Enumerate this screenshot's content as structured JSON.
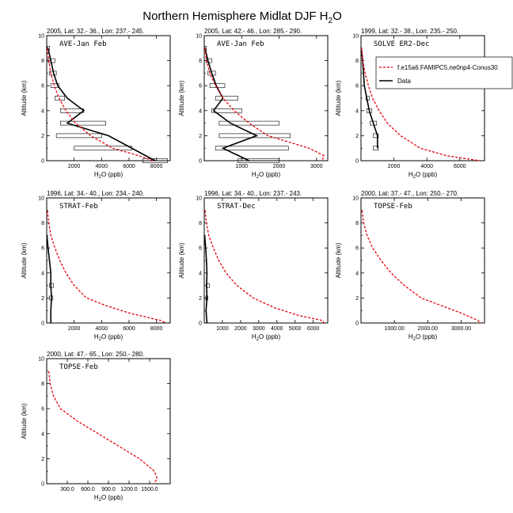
{
  "figure_title": "Northern Hemisphere Midlat DJF H",
  "figure_title_sub": "2",
  "figure_title_tail": "O",
  "legend": {
    "model": "f.e15a6.FAMIPC5.ne0np4-Conus30",
    "obs": "Data"
  },
  "colors": {
    "model": "#e8000b",
    "obs": "#000000",
    "box": "#000000"
  },
  "chart_data": [
    {
      "type": "line",
      "title": "2005, Lat: 32.- 36., Lon: 237.- 245.",
      "campaign": "AVE-Jan Feb",
      "xlabel": "H2O (ppb)",
      "ylabel": "Altitude (km)",
      "xlim": [
        0,
        9000
      ],
      "ylim": [
        0,
        10
      ],
      "xticks": [
        2000,
        4000,
        6000,
        8000
      ],
      "xtick_labels": [
        "2000",
        "4000",
        "6000",
        "8000"
      ],
      "yticks": [
        0,
        2,
        4,
        6,
        8,
        10
      ],
      "model": {
        "x": [
          50,
          80,
          150,
          300,
          550,
          900,
          1400,
          2100,
          3200,
          4800,
          6400,
          7800
        ],
        "y": [
          9,
          8.5,
          8,
          7,
          6,
          5,
          4,
          3,
          2,
          1,
          0.5,
          0
        ]
      },
      "obs": {
        "x": [
          100,
          300,
          500,
          800,
          1500,
          2700,
          1500,
          4500,
          7900
        ],
        "y": [
          9,
          8,
          7,
          6,
          5,
          4,
          3,
          2,
          0
        ]
      },
      "boxes": [
        {
          "y": 9,
          "lo": 50,
          "hi": 200
        },
        {
          "y": 8,
          "lo": 100,
          "hi": 600
        },
        {
          "y": 7,
          "lo": 200,
          "hi": 700
        },
        {
          "y": 6,
          "lo": 300,
          "hi": 900
        },
        {
          "y": 5,
          "lo": 600,
          "hi": 1300
        },
        {
          "y": 4,
          "lo": 1000,
          "hi": 2700
        },
        {
          "y": 3,
          "lo": 1000,
          "hi": 4300
        },
        {
          "y": 2,
          "lo": 700,
          "hi": 4000
        },
        {
          "y": 1,
          "lo": 2000,
          "hi": 6200
        },
        {
          "y": 0,
          "lo": 7000,
          "hi": 8800
        }
      ]
    },
    {
      "type": "line",
      "title": "2005, Lat: 42.- 46., Lon: 285.- 290.",
      "campaign": "AVE-Jan Feb",
      "xlabel": "H2O (ppb)",
      "ylabel": "Altitude (km)",
      "xlim": [
        0,
        3300
      ],
      "ylim": [
        0,
        10
      ],
      "xticks": [
        1000,
        2000,
        3000
      ],
      "xtick_labels": [
        "1000",
        "2000",
        "3000"
      ],
      "yticks": [
        0,
        2,
        4,
        6,
        8,
        10
      ],
      "model": {
        "x": [
          20,
          60,
          150,
          300,
          500,
          800,
          1200,
          1700,
          2250,
          2800,
          3200,
          3150
        ],
        "y": [
          9,
          8,
          7,
          6,
          5,
          4,
          3,
          2,
          1.5,
          1,
          0.4,
          0
        ]
      },
      "obs": {
        "x": [
          20,
          100,
          200,
          320,
          500,
          250,
          700,
          1400,
          500,
          1200
        ],
        "y": [
          9,
          8,
          7,
          6,
          5,
          4,
          3,
          2,
          1,
          0
        ]
      },
      "boxes": [
        {
          "y": 9,
          "lo": 10,
          "hi": 60
        },
        {
          "y": 8,
          "lo": 50,
          "hi": 200
        },
        {
          "y": 7,
          "lo": 100,
          "hi": 300
        },
        {
          "y": 6,
          "lo": 150,
          "hi": 550
        },
        {
          "y": 5,
          "lo": 300,
          "hi": 900
        },
        {
          "y": 4,
          "lo": 200,
          "hi": 1000
        },
        {
          "y": 3,
          "lo": 400,
          "hi": 2000
        },
        {
          "y": 2,
          "lo": 400,
          "hi": 2300
        },
        {
          "y": 1,
          "lo": 300,
          "hi": 2250
        },
        {
          "y": 0,
          "lo": 900,
          "hi": 2000
        }
      ]
    },
    {
      "type": "line",
      "title": "1999, Lat: 32.- 38., Lon: 235.- 250.",
      "campaign": "SOLVE ER2-Dec",
      "xlabel": "H2O (ppb)",
      "ylabel": "Altitude (km)",
      "xlim": [
        0,
        7500
      ],
      "ylim": [
        0,
        10
      ],
      "xticks": [
        2000,
        4000,
        6000
      ],
      "xtick_labels": [
        "2000",
        "4000",
        "6000"
      ],
      "yticks": [
        0,
        2,
        4,
        6,
        8,
        10
      ],
      "model": {
        "x": [
          30,
          100,
          250,
          450,
          700,
          1100,
          1600,
          2400,
          3600,
          5200,
          7200
        ],
        "y": [
          9,
          8,
          7,
          6,
          5,
          4,
          3,
          2,
          1,
          0.4,
          0
        ]
      },
      "obs": {
        "x": [
          20,
          100,
          200,
          350,
          500,
          750,
          1000,
          1000
        ],
        "y": [
          9,
          8,
          6,
          5,
          4,
          3,
          2,
          1
        ]
      },
      "boxes": [
        {
          "y": 5,
          "lo": 300,
          "hi": 500
        },
        {
          "y": 4,
          "lo": 350,
          "hi": 650
        },
        {
          "y": 3,
          "lo": 550,
          "hi": 950
        },
        {
          "y": 2,
          "lo": 750,
          "hi": 1050
        },
        {
          "y": 1,
          "lo": 750,
          "hi": 1050
        }
      ],
      "show_legend": true
    },
    {
      "type": "line",
      "title": "1996, Lat: 34.- 40., Lon: 234.- 240.",
      "campaign": "STRAT-Feb",
      "xlabel": "H2O (ppb)",
      "ylabel": "Altitude (km)",
      "xlim": [
        0,
        9000
      ],
      "ylim": [
        0,
        10
      ],
      "xticks": [
        2000,
        4000,
        6000,
        8000
      ],
      "xtick_labels": [
        "2000",
        "4000",
        "6000",
        "8000"
      ],
      "yticks": [
        0,
        2,
        4,
        6,
        8,
        10
      ],
      "model": {
        "x": [
          50,
          150,
          300,
          600,
          950,
          1400,
          2000,
          2900,
          4300,
          6000,
          8300,
          8700
        ],
        "y": [
          9,
          8,
          7,
          6,
          5,
          4,
          3,
          2,
          1.4,
          0.8,
          0.2,
          0
        ]
      },
      "obs": {
        "x": [
          20,
          100,
          200,
          300,
          300,
          350,
          300,
          300
        ],
        "y": [
          7,
          6,
          5,
          4,
          3,
          2,
          1,
          0
        ]
      },
      "boxes": [
        {
          "y": 3,
          "lo": 200,
          "hi": 500
        },
        {
          "y": 2,
          "lo": 200,
          "hi": 450
        }
      ]
    },
    {
      "type": "line",
      "title": "1996, Lat: 34.- 40., Lon: 237.- 243.",
      "campaign": "STRAT-Dec",
      "xlabel": "H2O (ppb)",
      "ylabel": "Altitude (km)",
      "xlim": [
        0,
        6800
      ],
      "ylim": [
        0,
        10
      ],
      "xticks": [
        1000,
        2000,
        3000,
        4000,
        5000,
        6000
      ],
      "xtick_labels": [
        "1000",
        "2000",
        "3000",
        "4000",
        "5000",
        "6000"
      ],
      "yticks": [
        0,
        2,
        4,
        6,
        8,
        10
      ],
      "model": {
        "x": [
          40,
          120,
          250,
          500,
          800,
          1200,
          1800,
          2700,
          3900,
          5200,
          6500,
          6600
        ],
        "y": [
          9,
          8,
          7,
          6,
          5,
          4,
          3,
          2,
          1.2,
          0.6,
          0.2,
          0
        ]
      },
      "obs": {
        "x": [
          20,
          80,
          120,
          150,
          130,
          150,
          100,
          150
        ],
        "y": [
          7,
          6,
          5,
          4,
          3,
          2,
          1,
          0
        ]
      },
      "boxes": [
        {
          "y": 3,
          "lo": 100,
          "hi": 280
        },
        {
          "y": 2,
          "lo": 80,
          "hi": 200
        }
      ]
    },
    {
      "type": "line",
      "title": "2000, Lat: 37.- 47., Lon: 250.- 270.",
      "campaign": "TOPSE-Feb",
      "xlabel": "H2O (ppb)",
      "ylabel": "Altitude (km)",
      "xlim": [
        0,
        3700
      ],
      "ylim": [
        0,
        10
      ],
      "xticks": [
        1000,
        2000,
        3000
      ],
      "xtick_labels": [
        "1000.00",
        "2000.00",
        "3000.00"
      ],
      "yticks": [
        0,
        2,
        4,
        6,
        8,
        10
      ],
      "model": {
        "x": [
          30,
          80,
          180,
          350,
          600,
          900,
          1300,
          1800,
          2400,
          3000,
          3500,
          3600
        ],
        "y": [
          9,
          8,
          7,
          6,
          5,
          4,
          3,
          2,
          1.4,
          0.8,
          0.2,
          0
        ]
      }
    },
    {
      "type": "line",
      "title": "2000, Lat: 47.- 65., Lon: 250.- 280.",
      "campaign": "TOPSE-Feb",
      "xlabel": "H2O (ppb)",
      "ylabel": "Altitude (km)",
      "xlim": [
        0,
        1800
      ],
      "ylim": [
        0,
        10
      ],
      "xticks": [
        300,
        600,
        900,
        1200,
        1500
      ],
      "xtick_labels": [
        "300.0",
        "600.0",
        "900.0",
        "1200.0",
        "1500.0"
      ],
      "yticks": [
        0,
        2,
        4,
        6,
        8,
        10
      ],
      "model": {
        "x": [
          30,
          50,
          100,
          200,
          450,
          750,
          1050,
          1350,
          1570,
          1610,
          1560
        ],
        "y": [
          9,
          8,
          7,
          6,
          5,
          4,
          3,
          2,
          1,
          0.4,
          0
        ]
      }
    }
  ]
}
